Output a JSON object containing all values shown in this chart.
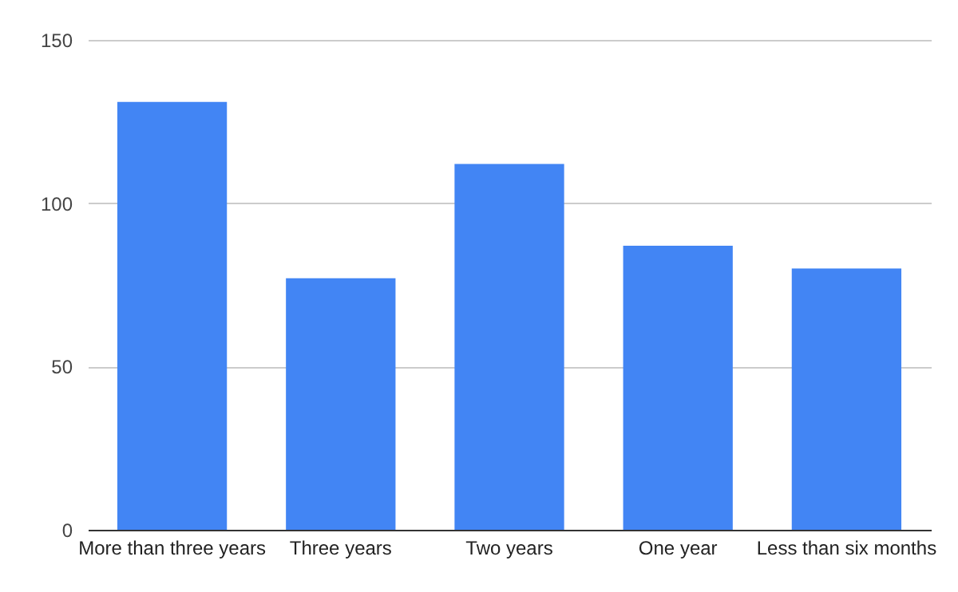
{
  "chart_data": {
    "type": "bar",
    "categories": [
      "More than three years",
      "Three years",
      "Two years",
      "One year",
      "Less than six months"
    ],
    "values": [
      131,
      77,
      112,
      87,
      80
    ],
    "color": "#4285f4",
    "ylim": [
      0,
      150
    ],
    "yticks": [
      0,
      50,
      100,
      150
    ],
    "grid": "y"
  }
}
